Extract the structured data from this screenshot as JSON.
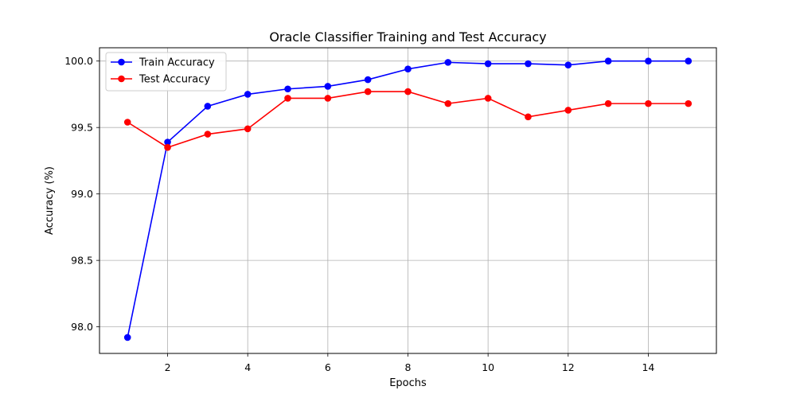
{
  "chart_data": {
    "type": "line",
    "title": "Oracle Classifier Training and Test Accuracy",
    "xlabel": "Epochs",
    "ylabel": "Accuracy (%)",
    "x": [
      1,
      2,
      3,
      4,
      5,
      6,
      7,
      8,
      9,
      10,
      11,
      12,
      13,
      14,
      15
    ],
    "xlim": [
      0.3,
      15.7
    ],
    "ylim": [
      97.8,
      100.1
    ],
    "xticks": [
      2,
      4,
      6,
      8,
      10,
      12,
      14
    ],
    "xtick_labels": [
      "2",
      "4",
      "6",
      "8",
      "10",
      "12",
      "14"
    ],
    "yticks": [
      98.0,
      98.5,
      99.0,
      99.5,
      100.0
    ],
    "ytick_labels": [
      "98.0",
      "98.5",
      "99.0",
      "99.5",
      "100.0"
    ],
    "grid": true,
    "legend_position": "top-left",
    "series": [
      {
        "name": "Train Accuracy",
        "color": "#0000ff",
        "marker": "circle",
        "values": [
          97.92,
          99.39,
          99.66,
          99.75,
          99.79,
          99.81,
          99.86,
          99.94,
          99.99,
          99.98,
          99.98,
          99.97,
          100.0,
          100.0,
          100.0
        ]
      },
      {
        "name": "Test Accuracy",
        "color": "#ff0000",
        "marker": "circle",
        "values": [
          99.54,
          99.35,
          99.45,
          99.49,
          99.72,
          99.72,
          99.77,
          99.77,
          99.68,
          99.72,
          99.58,
          99.63,
          99.68,
          99.68,
          99.68
        ]
      }
    ]
  }
}
